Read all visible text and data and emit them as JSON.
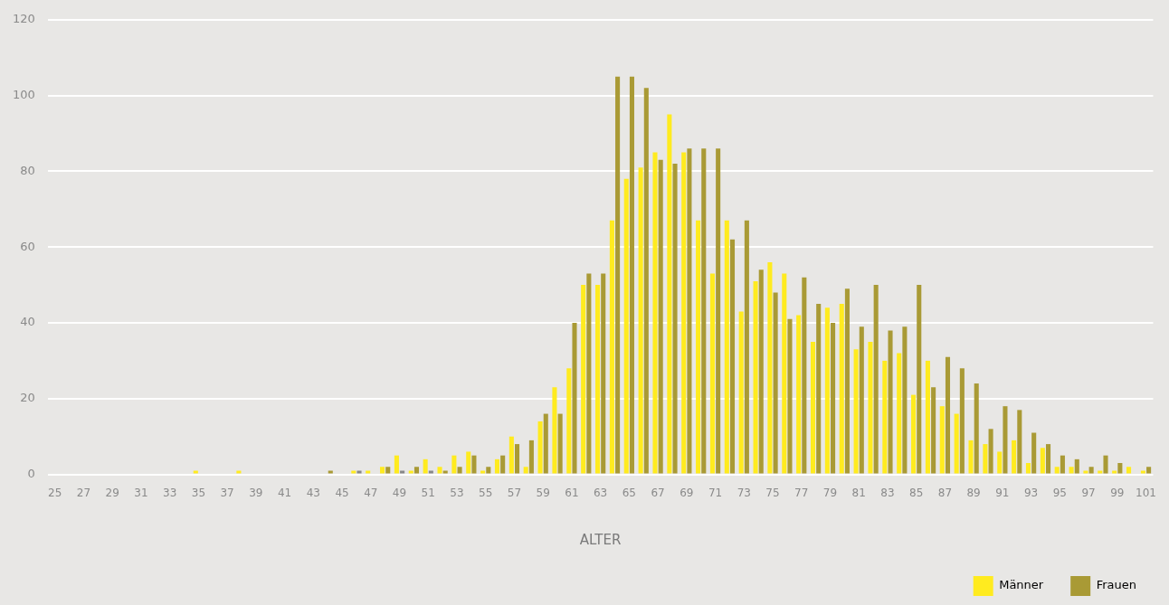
{
  "chart_data": {
    "type": "bar",
    "xlabel": "ALTER",
    "categories": [
      "25",
      null,
      "27",
      null,
      "29",
      null,
      "31",
      null,
      "33",
      null,
      "35",
      null,
      "37",
      null,
      "39",
      null,
      "41",
      null,
      "43",
      null,
      "45",
      null,
      "47",
      null,
      "49",
      null,
      "51",
      null,
      "53",
      null,
      "55",
      null,
      "57",
      null,
      "59",
      null,
      "61",
      null,
      "63",
      null,
      "65",
      null,
      "67",
      null,
      "69",
      null,
      "71",
      null,
      "73",
      null,
      "75",
      null,
      "77",
      null,
      "79",
      null,
      "81",
      null,
      "83",
      null,
      "85",
      null,
      "87",
      null,
      "89",
      null,
      "91",
      null,
      "93",
      null,
      "95",
      null,
      "97",
      null,
      "99",
      null,
      "101"
    ],
    "series": [
      {
        "name": "Männer",
        "color": "#ffeb1f",
        "values": [
          0,
          0,
          0,
          0,
          0,
          0,
          0,
          0,
          0,
          0,
          1,
          0,
          0,
          1,
          0,
          0,
          0,
          0,
          0,
          0,
          0,
          1,
          1,
          2,
          5,
          1,
          4,
          2,
          5,
          6,
          1,
          4,
          10,
          2,
          14,
          23,
          28,
          50,
          50,
          67,
          78,
          81,
          85,
          95,
          85,
          67,
          53,
          67,
          43,
          51,
          56,
          53,
          42,
          35,
          44,
          45,
          33,
          35,
          30,
          32,
          21,
          30,
          18,
          16,
          9,
          8,
          6,
          9,
          3,
          7,
          2,
          2,
          1,
          1,
          1,
          2,
          1
        ]
      },
      {
        "name": "Frauen",
        "color": "#a99a35",
        "colors": [
          "#a99a35",
          "#a99a35",
          "#a99a35",
          "#a99a35",
          "#a99a35",
          "#a99a35",
          "#a99a35",
          "#a99a35",
          "#a99a35",
          "#a99a35",
          "#a99a35",
          "#a99a35",
          "#a99a35",
          "#a99a35",
          "#a99a35",
          "#a99a35",
          "#a99a35",
          "#a99a35",
          "#a99a35",
          "#a99a35",
          "#a99a35",
          "#888888",
          "#a99a35",
          "#a99a35",
          "#888888",
          "#a99a35",
          "#888888",
          "#a99a35",
          "#a99a35",
          "#a99a35",
          "#a99a35",
          "#a99a35",
          "#a99a35",
          "#a99a35",
          "#a99a35",
          "#a99a35",
          "#a99a35",
          "#a99a35",
          "#a99a35",
          "#a99a35",
          "#a99a35",
          "#a99a35",
          "#a99a35",
          "#a99a35",
          "#a99a35",
          "#a99a35",
          "#a99a35",
          "#a99a35",
          "#a99a35",
          "#a99a35",
          "#a99a35",
          "#a99a35",
          "#a99a35",
          "#a99a35",
          "#a99a35",
          "#a99a35",
          "#a99a35",
          "#a99a35",
          "#a99a35",
          "#a99a35",
          "#a99a35",
          "#a99a35",
          "#a99a35",
          "#a99a35",
          "#a99a35",
          "#a99a35",
          "#a99a35",
          "#a99a35",
          "#a99a35",
          "#a99a35",
          "#a99a35",
          "#a99a35",
          "#a99a35",
          "#a99a35",
          "#a99a35",
          "#a99a35",
          "#a99a35"
        ],
        "values": [
          0,
          0,
          0,
          0,
          0,
          0,
          0,
          0,
          0,
          0,
          0,
          0,
          0,
          0,
          0,
          0,
          0,
          0,
          0,
          1,
          0,
          1,
          0,
          2,
          1,
          2,
          1,
          1,
          2,
          5,
          2,
          5,
          8,
          9,
          16,
          16,
          40,
          53,
          53,
          105,
          105,
          102,
          83,
          82,
          86,
          86,
          86,
          62,
          67,
          54,
          48,
          41,
          52,
          45,
          40,
          49,
          39,
          50,
          38,
          39,
          50,
          23,
          31,
          28,
          24,
          12,
          18,
          17,
          11,
          8,
          5,
          4,
          2,
          5,
          3,
          0,
          2
        ]
      }
    ],
    "ylim": [
      0,
      120
    ],
    "yticks": [
      0,
      20,
      40,
      60,
      80,
      100,
      120
    ],
    "grid": "y",
    "legend": "bottom right"
  }
}
